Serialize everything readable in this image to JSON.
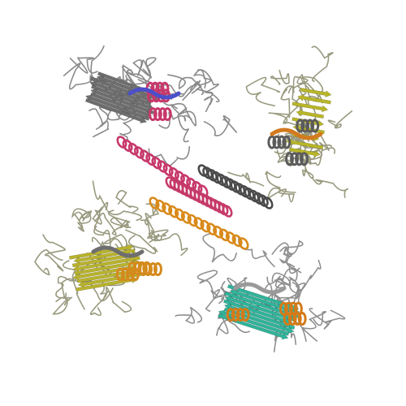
{
  "structure": {
    "subunits": [
      {
        "id": "A",
        "region": "top",
        "coil_color": "#8a8a8a",
        "sheet_color": "#6e6e6e",
        "helix_color": "#c7386b",
        "accent_color": "#4b4fc9"
      },
      {
        "id": "B",
        "region": "right",
        "coil_color": "#9a9a80",
        "sheet_color": "#b8b628",
        "helix_color": "#5b5b5b",
        "accent_color": "#d27a1e"
      },
      {
        "id": "C",
        "region": "bottom-right",
        "coil_color": "#8f8f8f",
        "sheet_color": "#2fb39a",
        "helix_color": "#d47a18",
        "accent_color": "#9a9a9a"
      },
      {
        "id": "D",
        "region": "left",
        "coil_color": "#9a9a80",
        "sheet_color": "#b8b22e",
        "helix_color": "#d48a1c",
        "accent_color": "#6e6e6e"
      }
    ],
    "core_helix_colors": [
      "#c7386b",
      "#d98a1a",
      "#4a4a4a",
      "#c53a69"
    ]
  }
}
